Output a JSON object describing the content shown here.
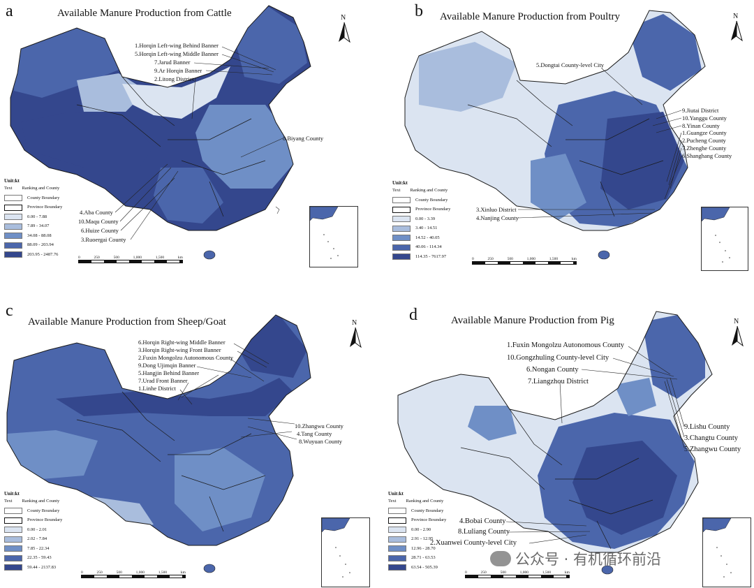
{
  "colors": {
    "class1": "#dbe4f1",
    "class2": "#a9bddd",
    "class3": "#6f8fc6",
    "class4": "#4b66ab",
    "class5": "#34478d",
    "boundary": "#1a1a1a"
  },
  "legend_common": {
    "unit": "Unit:kt",
    "text_label": "Text",
    "ranking_label": "Ranking and County",
    "county_boundary": "County Boundary",
    "province_boundary": "Province Boundary"
  },
  "scale_labels": [
    "0",
    "250",
    "500",
    "1,000",
    "1,500",
    "km"
  ],
  "north_label": "N",
  "panels": [
    {
      "label": "a",
      "title": "Available Manure Production from Cattle",
      "classes": [
        "0.00 - 7.88",
        "7.89 - 34.07",
        "34.08 - 88.08",
        "88.09 - 203.94",
        "203.95 - 2487.76"
      ],
      "annotations": [
        "1.Horqin Left-wing Behind Banner",
        "5.Horqin Left-wing Middle Banner",
        "7.Jarud Banner",
        "9.Ar Horqin Banner",
        "2.Litong District",
        "8.Biyang County",
        "4.Aba County",
        "10.Maqu County",
        "6.Huize County",
        "3.Ruoergai County"
      ]
    },
    {
      "label": "b",
      "title": "Available Manure Production from Poultry",
      "classes": [
        "0.00 - 3.39",
        "3.40 - 14.51",
        "14.52 - 40.05",
        "40.06 - 114.34",
        "114.35 - 7617.97"
      ],
      "annotations": [
        "5.Dongtai County-level City",
        "9.Jiutai District",
        "10.Yanggu County",
        "8.Yinan County",
        "1.Guangze County",
        "2.Pucheng County",
        "7.Zhenghe County",
        "6.Shanghang County",
        "3.Xinluo District",
        "4.Nanjing County"
      ]
    },
    {
      "label": "c",
      "title": "Available Manure Production from Sheep/Goat",
      "classes": [
        "0.00 - 2.01",
        "2.02 - 7.84",
        "7.85 - 22.34",
        "22.35 - 59.43",
        "59.44 - 2137.83"
      ],
      "annotations": [
        "6.Horqin Right-wing Middle Banner",
        "3.Horqin Right-wing Front Banner",
        "2.Fuxin Mongolzu Autonomous County",
        "9.Dong Ujimqin Banner",
        "5.Hangjin Behind Banner",
        "7.Urad Front Banner",
        "1.Linhe District",
        "10.Zhangwu County",
        "4.Tang County",
        "8.Wuyuan County"
      ]
    },
    {
      "label": "d",
      "title": "Available Manure Production from Pig",
      "classes": [
        "0.00 - 2.90",
        "2.91 - 12.95",
        "12.96 - 28.70",
        "28.71 - 63.53",
        "63.54 - 505.39"
      ],
      "annotations": [
        "1.Fuxin Mongolzu Autonomous County",
        "10.Gongzhuling County-level City",
        "6.Nongan County",
        "7.Liangzhou District",
        "9.Lishu County",
        "3.Changtu County",
        "5.Zhangwu County",
        "4.Bobai County",
        "8.Luliang County",
        "2.Xuanwei County-level City"
      ]
    }
  ],
  "watermark": "公众号 · 有机循环前沿"
}
